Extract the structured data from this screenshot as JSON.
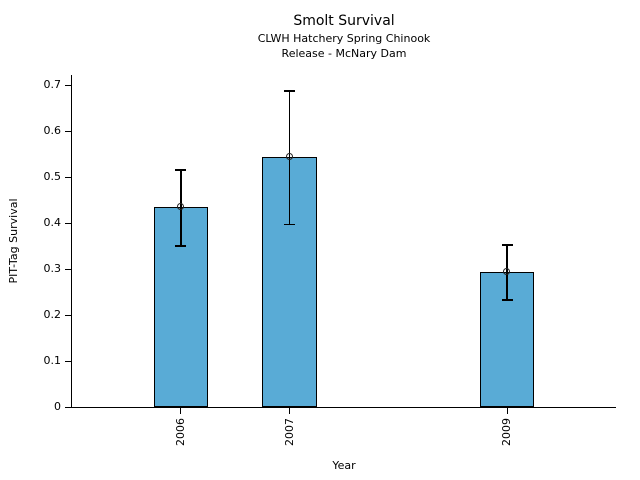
{
  "chart_data": {
    "type": "bar",
    "title": "Smolt Survival",
    "subtitle_line1": "CLWH Hatchery Spring Chinook",
    "subtitle_line2": "Release - McNary Dam",
    "xlabel": "Year",
    "ylabel": "PIT-Tag Survival",
    "categories": [
      "2006",
      "2007",
      "2009"
    ],
    "x": [
      2006,
      2007,
      2009
    ],
    "values": [
      0.435,
      0.544,
      0.293
    ],
    "error_low": [
      0.35,
      0.397,
      0.233
    ],
    "error_high": [
      0.515,
      0.687,
      0.352
    ],
    "bar_width_x": 0.5,
    "xlim": [
      2005,
      2010
    ],
    "ylim": [
      0,
      0.7
    ],
    "yticks": [
      0,
      0.1,
      0.2,
      0.3,
      0.4,
      0.5,
      0.6,
      0.7
    ],
    "ytick_labels": [
      "0",
      "0.1",
      "0.2",
      "0.3",
      "0.4",
      "0.5",
      "0.6",
      "0.7"
    ],
    "grid": false,
    "legend": null,
    "marker": "open-circle",
    "colors": {
      "bar_fill": "#59ABD6",
      "bar_edge": "#000000",
      "error_bar": "#000000",
      "marker_edge": "#222222",
      "axis": "#000000",
      "text": "#000000",
      "background": "#ffffff"
    }
  }
}
